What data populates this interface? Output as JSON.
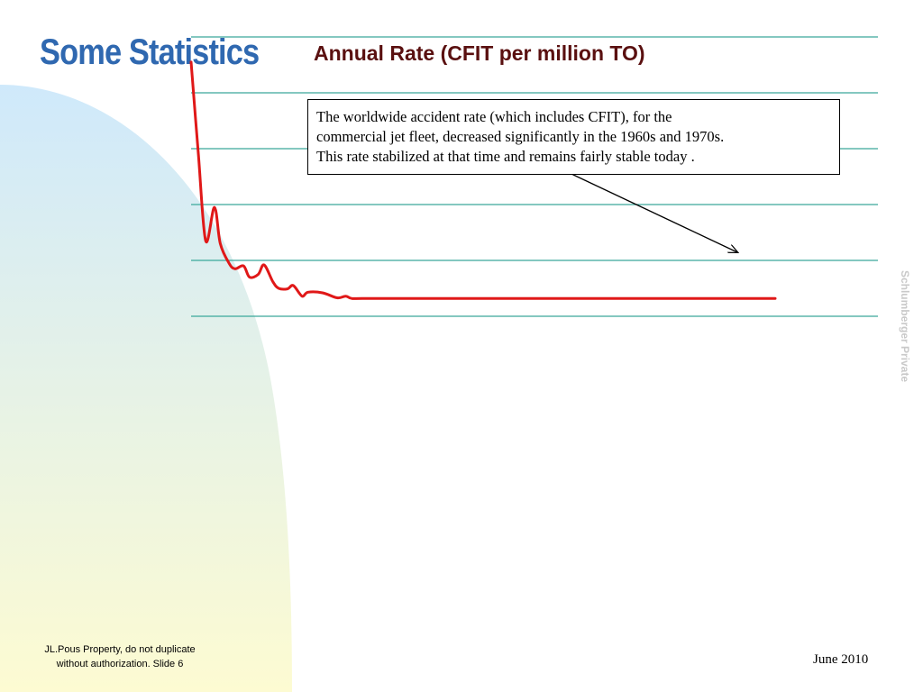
{
  "slide": {
    "title": "Some Statistics",
    "watermark": "Schlumberger Private",
    "footer_left_line1": "JL.Pous Property, do not duplicate",
    "footer_left_line2": "without authorization.  Slide 6",
    "footer_right": "June 2010"
  },
  "colors": {
    "title": "#2f68b0",
    "chart_title": "#5a1010",
    "series_line": "#e01818",
    "gridline": "#3aa89a",
    "decor_gradient_top": "#cfe9fb",
    "decor_gradient_bottom": "#fdfbd2"
  },
  "callout": {
    "line1": "The worldwide accident rate (which includes CFIT), for the",
    "line2": "commercial jet fleet, decreased significantly in the 1960s and 1970s.",
    "line3": "This rate stabilized at that time and remains fairly stable today ."
  },
  "chart_data": {
    "type": "line",
    "title": "Annual Rate (CFIT per million TO)",
    "xlabel": "",
    "ylabel": "",
    "x_tick_labels": [],
    "y_tick_labels": [],
    "grid": true,
    "legend": "none",
    "ylim": [
      0,
      5
    ],
    "xlim": [
      0,
      40
    ],
    "series": [
      {
        "x": [
          0,
          0.5,
          1,
          1.6,
          2,
          2.6,
          3,
          3.6,
          4,
          4.6,
          5,
          5.6,
          6,
          6.6,
          7,
          7.6,
          8,
          9,
          10,
          10.6,
          11,
          12,
          12.6,
          13,
          14,
          15,
          16,
          17,
          18,
          19,
          20,
          21,
          22,
          23,
          24,
          25,
          26,
          27,
          28,
          29,
          30,
          31,
          32,
          33,
          34,
          35,
          36,
          37,
          38,
          39,
          40
        ],
        "y": [
          4.55,
          2.9,
          1.35,
          1.95,
          1.3,
          0.95,
          0.85,
          0.9,
          0.7,
          0.75,
          0.92,
          0.62,
          0.5,
          0.49,
          0.55,
          0.36,
          0.43,
          0.42,
          0.33,
          0.36,
          0.32,
          0.32,
          0.32,
          0.32,
          0.32,
          0.32,
          0.32,
          0.32,
          0.32,
          0.32,
          0.32,
          0.32,
          0.32,
          0.32,
          0.32,
          0.32,
          0.32,
          0.32,
          0.32,
          0.32,
          0.32,
          0.32,
          0.32,
          0.32,
          0.32,
          0.32,
          0.32,
          0.32,
          0.32,
          0.32,
          0.32
        ]
      }
    ],
    "series_note": ""
  }
}
